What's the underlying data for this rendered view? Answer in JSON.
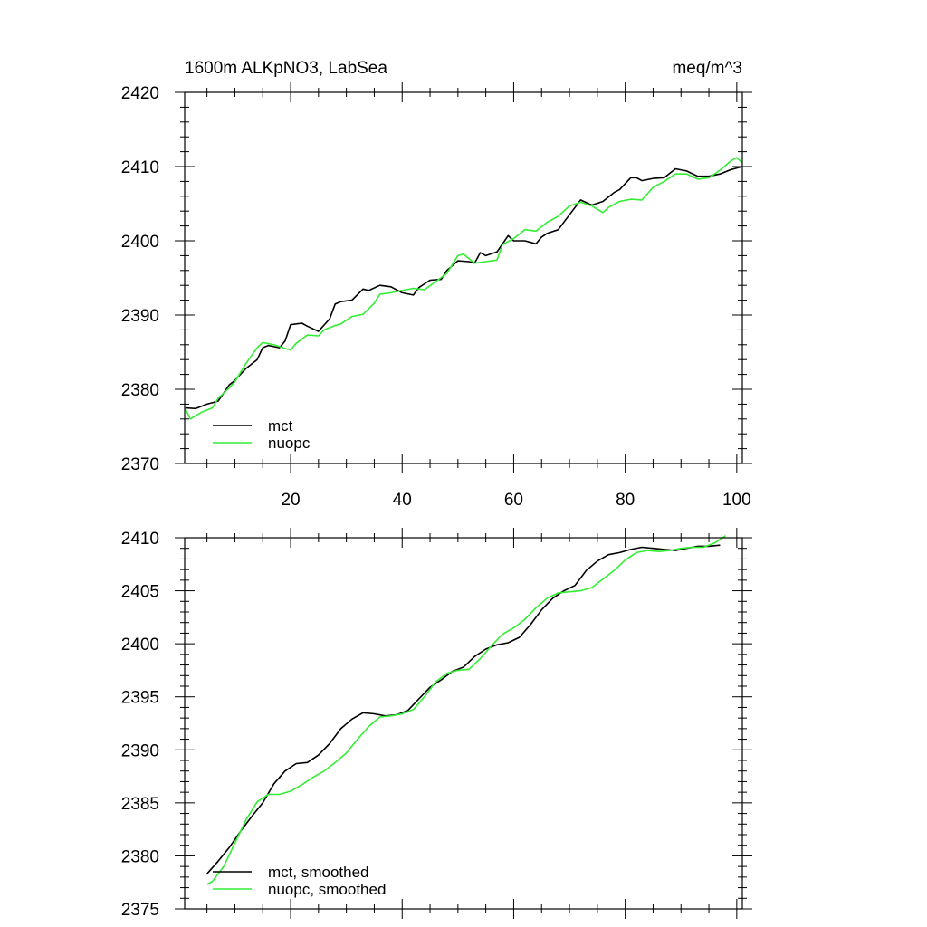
{
  "chart_data": [
    {
      "type": "line",
      "title_left": "1600m ALKpNO3, LabSea",
      "title_right": "meq/m^3",
      "xlabel": "",
      "ylabel": "",
      "xlim": [
        1,
        101
      ],
      "ylim": [
        2370,
        2420
      ],
      "x_ticks": [
        20,
        40,
        60,
        80,
        100
      ],
      "y_ticks": [
        2370,
        2380,
        2390,
        2400,
        2410,
        2420
      ],
      "legend_position": "bottom-left",
      "series": [
        {
          "name": "mct",
          "color": "#000000",
          "x": [
            1,
            3,
            5,
            7,
            9,
            10,
            12,
            14,
            15,
            16,
            18,
            19,
            20,
            22,
            23,
            25,
            27,
            28,
            29,
            31,
            33,
            34,
            36,
            38,
            40,
            42,
            43,
            45,
            47,
            48,
            50,
            52,
            53,
            54,
            55,
            57,
            59,
            60,
            62,
            64,
            65,
            66,
            68,
            70,
            72,
            74,
            76,
            78,
            79,
            81,
            82,
            83,
            85,
            87,
            89,
            91,
            93,
            95,
            97,
            99,
            101
          ],
          "y": [
            2377.5,
            2377.4,
            2378.0,
            2378.4,
            2380.6,
            2381.2,
            2382.8,
            2384.0,
            2385.6,
            2385.9,
            2385.6,
            2386.5,
            2388.7,
            2388.9,
            2388.5,
            2387.8,
            2389.5,
            2391.5,
            2391.8,
            2392.0,
            2393.5,
            2393.3,
            2394.0,
            2393.8,
            2393.0,
            2392.7,
            2393.7,
            2394.7,
            2394.8,
            2396.0,
            2397.3,
            2397.2,
            2397.0,
            2398.4,
            2398.0,
            2398.5,
            2400.7,
            2400.0,
            2400.0,
            2399.6,
            2400.5,
            2401.0,
            2401.5,
            2403.5,
            2405.5,
            2404.8,
            2405.3,
            2406.5,
            2406.9,
            2408.5,
            2408.5,
            2408.1,
            2408.4,
            2408.5,
            2409.7,
            2409.4,
            2408.7,
            2408.7,
            2409.0,
            2409.6,
            2410.0
          ]
        },
        {
          "name": "nuopc",
          "color": "#33ee33",
          "x": [
            1,
            2,
            4,
            6,
            7,
            9,
            10,
            12,
            14,
            15,
            17,
            19,
            20,
            21,
            23,
            25,
            26,
            28,
            29,
            31,
            33,
            35,
            36,
            38,
            40,
            42,
            44,
            46,
            48,
            50,
            51,
            53,
            55,
            57,
            58,
            60,
            62,
            64,
            66,
            68,
            70,
            72,
            74,
            76,
            77,
            79,
            81,
            83,
            85,
            87,
            89,
            91,
            93,
            95,
            97,
            99,
            100,
            101
          ],
          "y": [
            2377.6,
            2376.0,
            2376.9,
            2377.5,
            2378.8,
            2380.2,
            2381.0,
            2383.5,
            2385.6,
            2386.3,
            2386.0,
            2385.5,
            2385.3,
            2386.2,
            2387.3,
            2387.2,
            2388.0,
            2388.6,
            2388.8,
            2389.8,
            2390.1,
            2391.6,
            2392.8,
            2393.0,
            2393.3,
            2393.6,
            2393.4,
            2394.5,
            2395.6,
            2398.0,
            2398.2,
            2397.0,
            2397.2,
            2397.4,
            2399.5,
            2400.3,
            2401.5,
            2401.3,
            2402.5,
            2403.3,
            2404.7,
            2405.2,
            2404.7,
            2403.8,
            2404.5,
            2405.3,
            2405.6,
            2405.5,
            2407.2,
            2408.0,
            2409.0,
            2409.0,
            2408.3,
            2408.5,
            2409.5,
            2410.8,
            2411.2,
            2410.5
          ]
        }
      ]
    },
    {
      "type": "line",
      "title": "",
      "xlabel": "",
      "ylabel": "",
      "xlim": [
        1,
        101
      ],
      "ylim": [
        2375,
        2410
      ],
      "x_ticks": [
        20,
        40,
        60,
        80,
        100
      ],
      "x_tick_labels_visible": false,
      "y_ticks": [
        2375,
        2380,
        2385,
        2390,
        2395,
        2400,
        2405,
        2410
      ],
      "legend_position": "bottom-left",
      "series": [
        {
          "name": "mct, smoothed",
          "color": "#000000",
          "x": [
            5,
            7,
            9,
            11,
            13,
            15,
            17,
            19,
            21,
            23,
            25,
            27,
            29,
            31,
            33,
            35,
            37,
            39,
            41,
            43,
            45,
            47,
            49,
            51,
            53,
            55,
            57,
            59,
            61,
            63,
            65,
            67,
            69,
            71,
            73,
            75,
            77,
            79,
            81,
            83,
            85,
            87,
            89,
            91,
            93,
            95,
            97
          ],
          "y": [
            2378.3,
            2379.5,
            2380.8,
            2382.3,
            2383.7,
            2385.0,
            2386.8,
            2388.0,
            2388.7,
            2388.8,
            2389.5,
            2390.6,
            2392.0,
            2392.9,
            2393.5,
            2393.4,
            2393.2,
            2393.3,
            2393.7,
            2394.8,
            2395.9,
            2396.6,
            2397.4,
            2397.8,
            2398.8,
            2399.5,
            2399.9,
            2400.1,
            2400.6,
            2401.8,
            2403.2,
            2404.3,
            2405.0,
            2405.5,
            2406.9,
            2407.8,
            2408.4,
            2408.6,
            2408.9,
            2409.1,
            2409.0,
            2408.9,
            2408.8,
            2409.0,
            2409.2,
            2409.2,
            2409.3
          ]
        },
        {
          "name": "nuopc, smoothed",
          "color": "#33ee33",
          "x": [
            5,
            6,
            8,
            10,
            12,
            14,
            16,
            18,
            20,
            22,
            24,
            26,
            28,
            30,
            32,
            34,
            36,
            38,
            40,
            42,
            44,
            46,
            48,
            50,
            52,
            54,
            56,
            58,
            60,
            62,
            64,
            66,
            68,
            70,
            72,
            74,
            76,
            78,
            80,
            82,
            84,
            86,
            88,
            90,
            92,
            94,
            96,
            98
          ],
          "y": [
            2377.3,
            2377.6,
            2379.0,
            2381.2,
            2383.4,
            2385.1,
            2385.8,
            2385.8,
            2386.1,
            2386.7,
            2387.4,
            2388.0,
            2388.8,
            2389.7,
            2391.0,
            2392.2,
            2393.1,
            2393.2,
            2393.4,
            2393.8,
            2395.0,
            2396.4,
            2397.2,
            2397.5,
            2397.6,
            2398.6,
            2399.8,
            2400.9,
            2401.5,
            2402.3,
            2403.4,
            2404.3,
            2404.8,
            2404.9,
            2405.0,
            2405.3,
            2406.1,
            2406.9,
            2407.9,
            2408.6,
            2408.8,
            2408.7,
            2408.8,
            2409.0,
            2409.1,
            2409.1,
            2409.5,
            2410.2
          ]
        }
      ]
    }
  ]
}
